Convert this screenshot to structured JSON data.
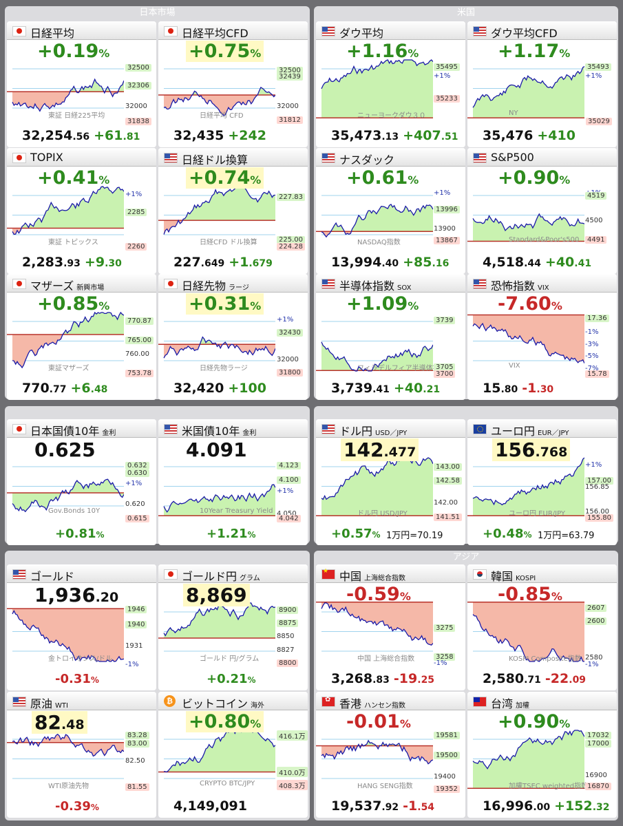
{
  "sections": {
    "japan": "日本市場",
    "us": "米国",
    "asia": "アジア"
  },
  "cards": [
    {
      "id": "nikkei",
      "flag": "jp",
      "name": "日経平均",
      "sub": "",
      "pct": "+0.19",
      "dir": "up",
      "price_int": "32,254",
      "price_dec": ".56",
      "chg_int": "+61",
      "chg_dec": ".81",
      "watermark": "東証 日経225平均",
      "labels": [
        "32500",
        "32306",
        "32000",
        "31838"
      ]
    },
    {
      "id": "nikkei-cfd",
      "flag": "jp",
      "name": "日経平均CFD",
      "sub": "",
      "pct": "+0.75",
      "dir": "up",
      "price_int": "32,435",
      "price_dec": "",
      "chg_int": "+242",
      "chg_dec": "",
      "watermark": "日経平均 CFD",
      "labels": [
        "32500",
        "32439",
        "32000",
        "31812"
      ]
    },
    {
      "id": "dow",
      "flag": "us",
      "name": "ダウ平均",
      "sub": "",
      "pct": "+1.16",
      "dir": "up",
      "price_int": "35,473",
      "price_dec": ".13",
      "chg_int": "+407",
      "chg_dec": ".51",
      "watermark": "ニューヨークダウ３０",
      "labels": [
        "35495",
        "+1%",
        "35233"
      ]
    },
    {
      "id": "dow-cfd",
      "flag": "us",
      "name": "ダウ平均CFD",
      "sub": "",
      "pct": "+1.17",
      "dir": "up",
      "price_int": "35,476",
      "price_dec": "",
      "chg_int": "+410",
      "chg_dec": "",
      "watermark": "NY",
      "labels": [
        "35493",
        "+1%",
        "35029"
      ]
    },
    {
      "id": "topix",
      "flag": "jp",
      "name": "TOPIX",
      "sub": "",
      "pct": "+0.41",
      "dir": "up",
      "price_int": "2,283",
      "price_dec": ".93",
      "chg_int": "+9",
      "chg_dec": ".30",
      "watermark": "東証 トピックス",
      "labels": [
        "+1%",
        "2285",
        "2260"
      ]
    },
    {
      "id": "nikkei-usd",
      "flag": "us",
      "name": "日経ドル換算",
      "sub": "",
      "pct": "+0.74",
      "dir": "up",
      "price_int": "227",
      "price_dec": ".649",
      "chg_int": "+1",
      "chg_dec": ".679",
      "watermark": "日経CFD ドル換算",
      "labels": [
        "227.83",
        "225.00",
        "224.28"
      ]
    },
    {
      "id": "nasdaq",
      "flag": "us",
      "name": "ナスダック",
      "sub": "",
      "pct": "+0.61",
      "dir": "up",
      "price_int": "13,994",
      "price_dec": ".40",
      "chg_int": "+85",
      "chg_dec": ".16",
      "watermark": "NASDAQ指数",
      "labels": [
        "+1%",
        "13996",
        "13900",
        "13867"
      ]
    },
    {
      "id": "sp500",
      "flag": "us",
      "name": "S&P500",
      "sub": "",
      "pct": "+0.90",
      "dir": "up",
      "price_int": "4,518",
      "price_dec": ".44",
      "chg_int": "+40",
      "chg_dec": ".41",
      "watermark": "Standard&Poor's500",
      "labels": [
        "+1%",
        "4519",
        "4500",
        "4491"
      ]
    },
    {
      "id": "mothers",
      "flag": "jp",
      "name": "マザーズ",
      "sub": "新興市場",
      "pct": "+0.85",
      "dir": "up",
      "price_int": "770",
      "price_dec": ".77",
      "chg_int": "+6",
      "chg_dec": ".48",
      "watermark": "東証マザーズ",
      "labels": [
        "770.87",
        "765.00",
        "760.00",
        "753.78"
      ]
    },
    {
      "id": "nikkei-futures",
      "flag": "jp",
      "name": "日経先物",
      "sub": "ラージ",
      "pct": "+0.31",
      "dir": "up",
      "price_int": "32,420",
      "price_dec": "",
      "chg_int": "+100",
      "chg_dec": "",
      "watermark": "日経先物ラージ",
      "labels": [
        "+1%",
        "32430",
        "32000",
        "31800"
      ]
    },
    {
      "id": "sox",
      "flag": "us",
      "name": "半導体指数",
      "sub": "SOX",
      "pct": "+1.09",
      "dir": "up",
      "price_int": "3,739",
      "price_dec": ".41",
      "chg_int": "+40",
      "chg_dec": ".21",
      "watermark": "フィラデルフィア半導体指数",
      "labels": [
        "3739",
        "3705",
        "3700"
      ]
    },
    {
      "id": "vix",
      "flag": "us",
      "name": "恐怖指数",
      "sub": "VIX",
      "pct": "-7.60",
      "dir": "down",
      "price_int": "15",
      "price_dec": ".80",
      "chg_int": "-1",
      "chg_dec": ".30",
      "watermark": "VIX",
      "labels": [
        "17.36",
        "-1%",
        "-3%",
        "-5%",
        "-7%",
        "15.78"
      ]
    },
    {
      "id": "jgb10",
      "flag": "jp",
      "name": "日本国債10年",
      "sub": "金利",
      "value_int": "0.625",
      "value_dec": "",
      "pct": "+0.81",
      "dir": "up",
      "watermark": "Gov.Bonds 10Y",
      "labels": [
        "0.632",
        "0.630",
        "+1%",
        "0.620",
        "0.615"
      ]
    },
    {
      "id": "ust10",
      "flag": "us",
      "name": "米国債10年",
      "sub": "金利",
      "value_int": "4.091",
      "value_dec": "",
      "pct": "+1.21",
      "dir": "up",
      "watermark": "10Year Treasury Yield",
      "labels": [
        "4.123",
        "4.100",
        "+1%",
        "4.050",
        "4.042"
      ]
    },
    {
      "id": "usdjpy",
      "flag": "us",
      "name": "ドル円",
      "sub": "USD／JPY",
      "value_int": "142",
      "value_dec": ".477",
      "pct": "+0.57",
      "dir": "up",
      "note": "1万円=70.19",
      "watermark": "ドル円 USD/JPY",
      "labels": [
        "143.00",
        "142.58",
        "142.00",
        "141.51"
      ]
    },
    {
      "id": "eurjpy",
      "flag": "eu",
      "name": "ユーロ円",
      "sub": "EUR／JPY",
      "value_int": "156",
      "value_dec": ".768",
      "pct": "+0.48",
      "dir": "up",
      "note": "1万円=63.79",
      "watermark": "ユーロ円 EUR/JPY",
      "labels": [
        "+1%",
        "157.00",
        "156.85",
        "156.00",
        "155.80"
      ]
    },
    {
      "id": "gold",
      "flag": "us",
      "name": "ゴールド",
      "sub": "",
      "value_int": "1,936",
      "value_dec": ".20",
      "pct": "-0.31",
      "dir": "down",
      "watermark": "金トロイオンス/ドル",
      "labels": [
        "1946",
        "1940",
        "1931",
        "-1%"
      ]
    },
    {
      "id": "gold-jpy",
      "flag": "jp",
      "name": "ゴールド円",
      "sub": "グラム",
      "value_int": "8,869",
      "value_dec": "",
      "pct": "+0.21",
      "dir": "up",
      "watermark": "ゴールド 円/グラム",
      "labels": [
        "8900",
        "8875",
        "8850",
        "8827",
        "8800"
      ]
    },
    {
      "id": "china",
      "flag": "cn",
      "name": "中国",
      "sub": "上海総合指数",
      "pct": "-0.59",
      "dir": "down",
      "price_int": "3,268",
      "price_dec": ".83",
      "chg_int": "-19",
      "chg_dec": ".25",
      "watermark": "中国 上海総合指数",
      "labels": [
        "3275",
        "3258",
        "-1%"
      ]
    },
    {
      "id": "korea",
      "flag": "kr",
      "name": "韓国",
      "sub": "KOSPI",
      "pct": "-0.85",
      "dir": "down",
      "price_int": "2,580",
      "price_dec": ".71",
      "chg_int": "-22",
      "chg_dec": ".09",
      "watermark": "KOSPI Composite指数",
      "labels": [
        "2607",
        "2600",
        "2580",
        "-1%"
      ]
    },
    {
      "id": "wti",
      "flag": "us",
      "name": "原油",
      "sub": "WTI",
      "value_int": "82",
      "value_dec": ".48",
      "pct": "-0.39",
      "dir": "down",
      "watermark": "WTI原油先物",
      "labels": [
        "83.28",
        "83.00",
        "82.50",
        "81.55"
      ]
    },
    {
      "id": "bitcoin",
      "flag": "btc",
      "name": "ビットコイン",
      "sub": "海外",
      "pct": "+0.80",
      "dir": "up",
      "price_int": "4,149,091",
      "price_dec": "",
      "chg_int": "",
      "chg_dec": "",
      "watermark": "CRYPTO BTC/JPY",
      "labels": [
        "416.1万",
        "410.0万",
        "408.3万"
      ]
    },
    {
      "id": "hongkong",
      "flag": "hk",
      "name": "香港",
      "sub": "ハンセン指数",
      "pct": "-0.01",
      "dir": "down",
      "price_int": "19,537",
      "price_dec": ".92",
      "chg_int": "-1",
      "chg_dec": ".54",
      "watermark": "HANG SENG指数",
      "labels": [
        "19581",
        "19500",
        "19400",
        "19352"
      ]
    },
    {
      "id": "taiwan",
      "flag": "tw",
      "name": "台湾",
      "sub": "加權",
      "pct": "+0.90",
      "dir": "up",
      "price_int": "16,996",
      "price_dec": ".00",
      "chg_int": "+152",
      "chg_dec": ".32",
      "watermark": "加權TSEC weighted指数",
      "labels": [
        "17032",
        "17000",
        "16900",
        "16870"
      ]
    }
  ]
}
